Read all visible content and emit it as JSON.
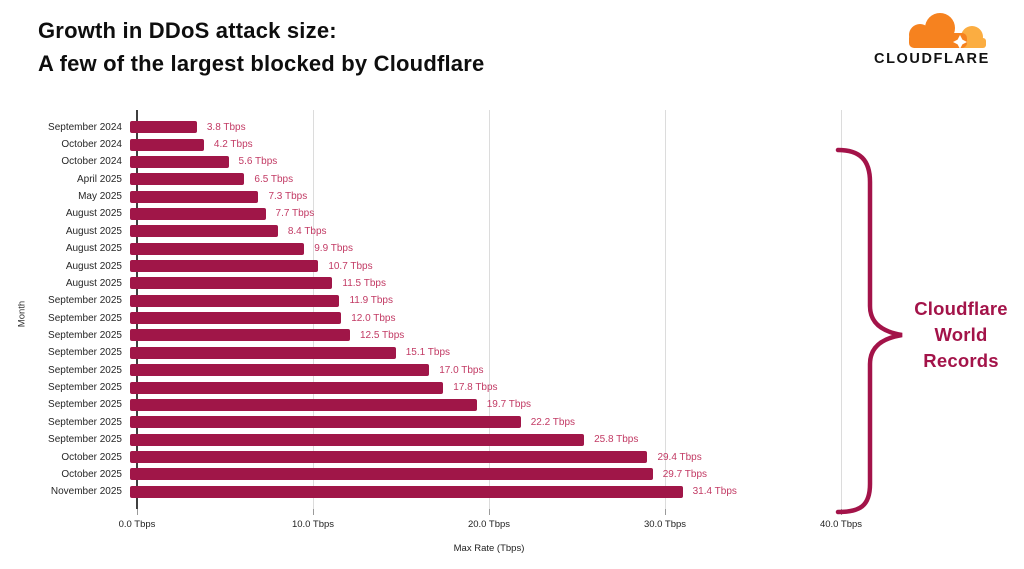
{
  "header": {
    "title_line1": "Growth in DDoS attack size:",
    "title_line2": "A few of the largest blocked by Cloudflare",
    "logo_text": "CLOUDFLARE"
  },
  "logo": {
    "cloud_main_color": "#F6821F",
    "cloud_light_color": "#FBAD41",
    "text_color": "#121212"
  },
  "chart_data": {
    "type": "bar",
    "orientation": "horizontal",
    "title": "",
    "xlabel": "Max Rate (Tbps)",
    "ylabel": "Month",
    "xlim": [
      0,
      40
    ],
    "grid": true,
    "x_ticks": [
      "0.0 Tbps",
      "10.0 Tbps",
      "20.0 Tbps",
      "30.0 Tbps",
      "40.0 Tbps"
    ],
    "categories": [
      "September 2024",
      "October 2024",
      "October 2024",
      "April 2025",
      "May 2025",
      "August 2025",
      "August 2025",
      "August 2025",
      "August 2025",
      "August 2025",
      "September 2025",
      "September 2025",
      "September 2025",
      "September 2025",
      "September 2025",
      "September 2025",
      "September 2025",
      "September 2025",
      "September 2025",
      "October 2025",
      "October 2025",
      "November 2025"
    ],
    "values": [
      3.8,
      4.2,
      5.6,
      6.5,
      7.3,
      7.7,
      8.4,
      9.9,
      10.7,
      11.5,
      11.9,
      12.0,
      12.5,
      15.1,
      17.0,
      17.8,
      19.7,
      22.2,
      25.8,
      29.4,
      29.7,
      31.4
    ],
    "value_labels": [
      "3.8 Tbps",
      "4.2 Tbps",
      "5.6 Tbps",
      "6.5 Tbps",
      "7.3 Tbps",
      "7.7 Tbps",
      "8.4 Tbps",
      "9.9 Tbps",
      "10.7 Tbps",
      "11.5 Tbps",
      "11.9 Tbps",
      "12.0 Tbps",
      "12.5 Tbps",
      "15.1 Tbps",
      "17.0 Tbps",
      "17.8 Tbps",
      "19.7 Tbps",
      "22.2 Tbps",
      "25.8 Tbps",
      "29.4 Tbps",
      "29.7 Tbps",
      "31.4 Tbps"
    ],
    "bar_color": "#A01648",
    "label_color": "#C23A64"
  },
  "annotation": {
    "brace_color": "#A31349",
    "text_color": "#A31349",
    "lines": [
      "Cloudflare",
      "World",
      "Records"
    ]
  }
}
